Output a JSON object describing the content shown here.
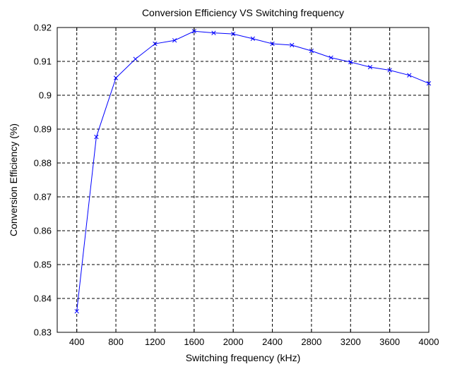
{
  "chart_data": {
    "type": "line",
    "title": "Conversion Efficiency VS Switching frequency",
    "xlabel": "Switching frequency (kHz)",
    "ylabel": "Conversion Efficiency (%)",
    "xlim": [
      200,
      4000
    ],
    "ylim": [
      0.83,
      0.92
    ],
    "xticks": [
      400,
      800,
      1200,
      1600,
      2000,
      2400,
      2800,
      3200,
      3600,
      4000
    ],
    "xtick_labels": [
      "400",
      "800",
      "1200",
      "1600",
      "2000",
      "2400",
      "2800",
      "3200",
      "3600",
      "4000"
    ],
    "yticks": [
      0.83,
      0.84,
      0.85,
      0.86,
      0.87,
      0.88,
      0.89,
      0.9,
      0.91,
      0.92
    ],
    "ytick_labels": [
      "0.83",
      "0.84",
      "0.85",
      "0.86",
      "0.87",
      "0.88",
      "0.89",
      "0.9",
      "0.91",
      "0.92"
    ],
    "grid": true,
    "grid_style": "dashed",
    "marker": "x",
    "line_color": "#0000ff",
    "series": [
      {
        "x": [
          400,
          600,
          800,
          1000,
          1200,
          1400,
          1600,
          1800,
          2000,
          2200,
          2400,
          2600,
          2800,
          3000,
          3200,
          3400,
          3600,
          3800,
          4000
        ],
        "values": [
          0.8362,
          0.8877,
          0.9051,
          0.9107,
          0.9152,
          0.9162,
          0.9189,
          0.9184,
          0.9181,
          0.9167,
          0.9152,
          0.9148,
          0.9131,
          0.9111,
          0.9098,
          0.9083,
          0.9074,
          0.9059,
          0.9035
        ]
      }
    ]
  }
}
